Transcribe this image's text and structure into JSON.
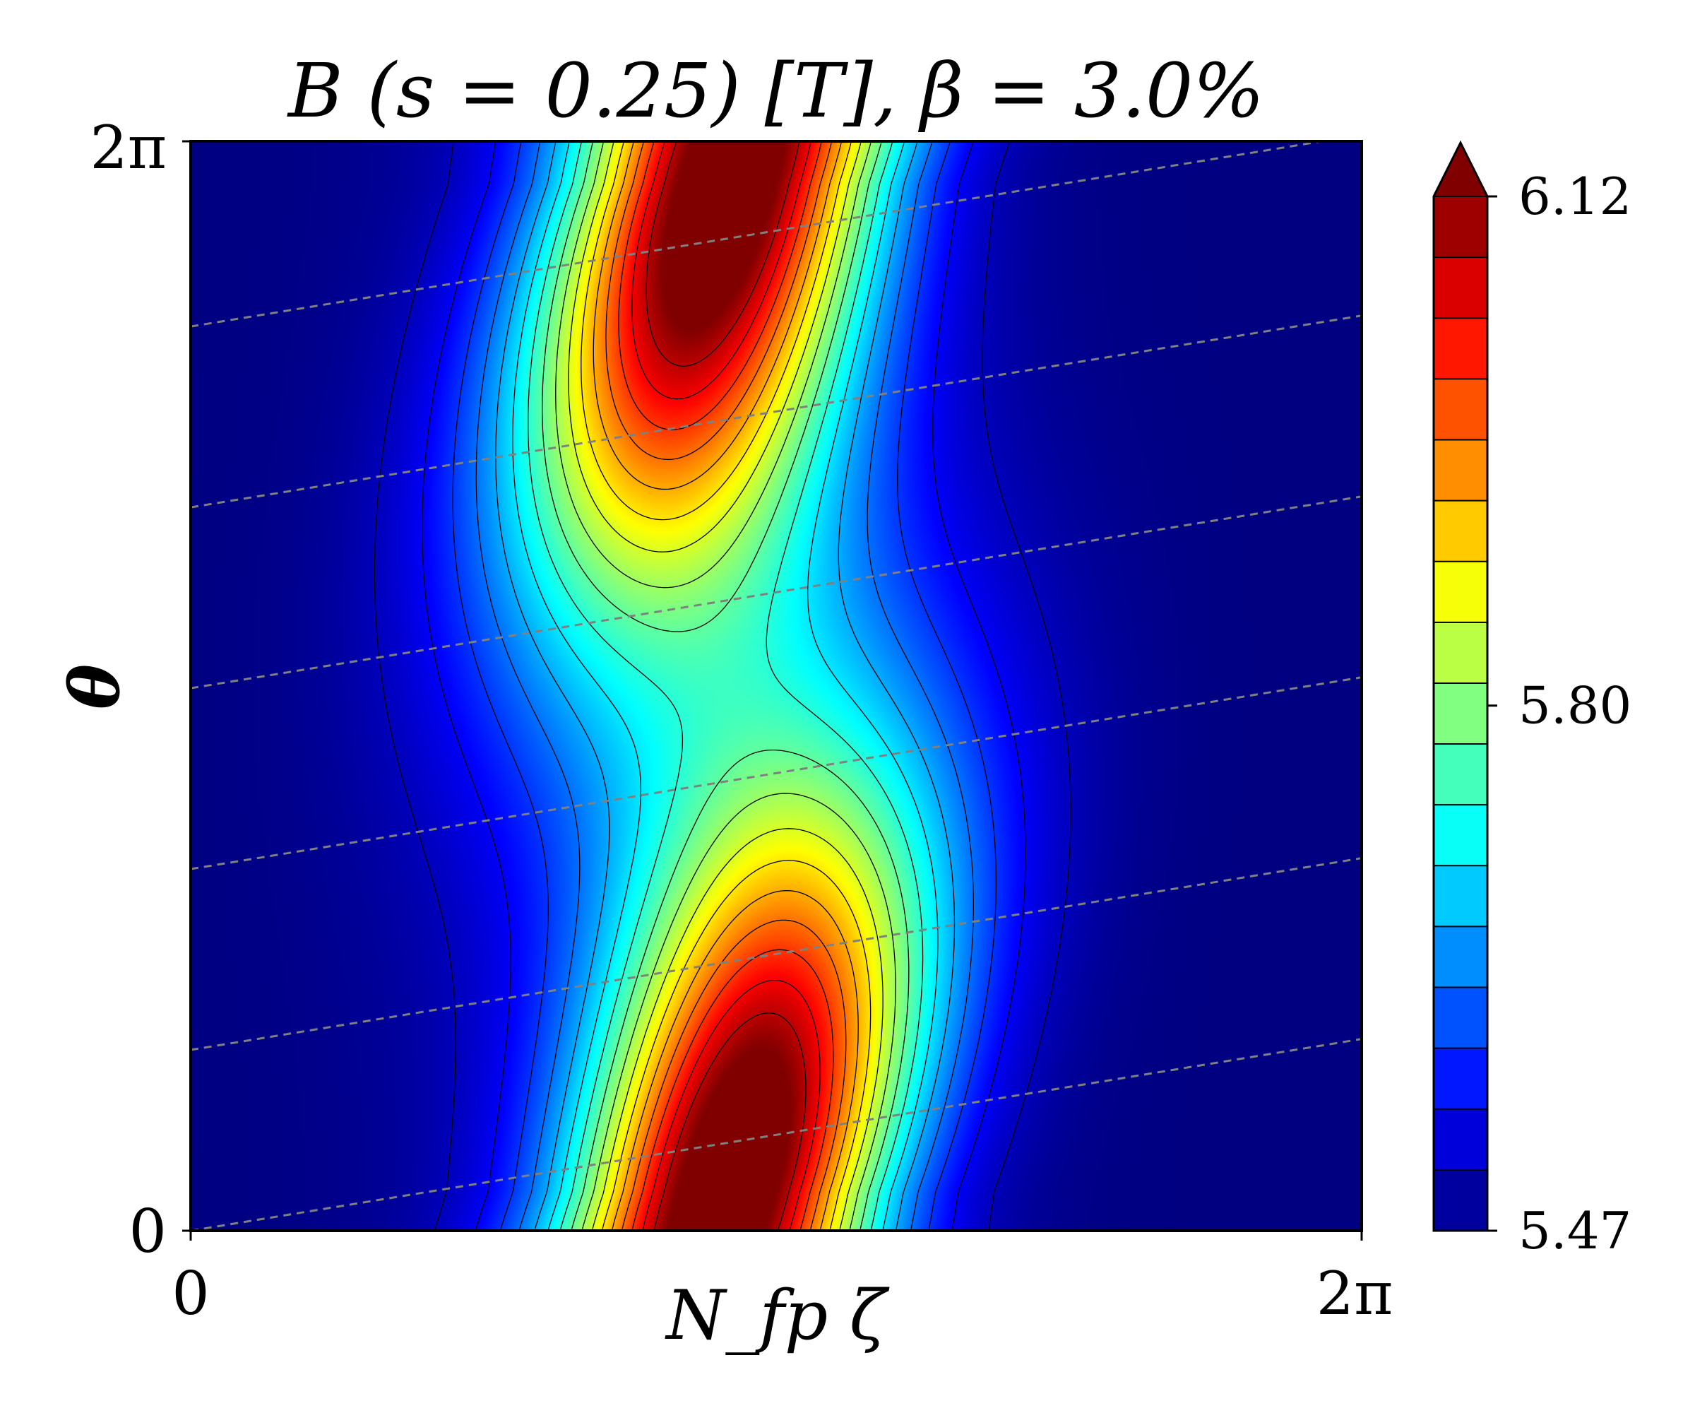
{
  "chart_data": {
    "type": "heatmap",
    "title": "B (s = 0.25) [T], β = 3.0%",
    "xlabel": "N_fp ζ",
    "ylabel": "θ",
    "x_tick_labels": [
      "0",
      "2π"
    ],
    "y_tick_labels": [
      "0",
      "2π"
    ],
    "xlim": [
      0,
      6.2832
    ],
    "ylim": [
      0,
      6.2832
    ],
    "colormap": "jet",
    "colorbar": {
      "min": 5.47,
      "max": 6.12,
      "tick_labels": [
        "6.12",
        "5.80",
        "5.47"
      ],
      "tick_values": [
        6.12,
        5.8,
        5.47
      ],
      "extend": "max",
      "levels": 17
    },
    "field_features": [
      {
        "name": "upper maximum",
        "zeta": 3.52,
        "theta": 6.2832,
        "value": 6.12
      },
      {
        "name": "lower maximum",
        "zeta": 3.52,
        "theta": 0.0,
        "value": 6.12
      },
      {
        "name": "background minimum",
        "zeta": 0.0,
        "theta": 3.14,
        "value": 5.47
      }
    ],
    "field_lines": {
      "style": "dashed",
      "color": "#808080",
      "count": 6,
      "slope_dtheta_dzeta": 0.176
    },
    "grid": false,
    "legend": "none"
  }
}
